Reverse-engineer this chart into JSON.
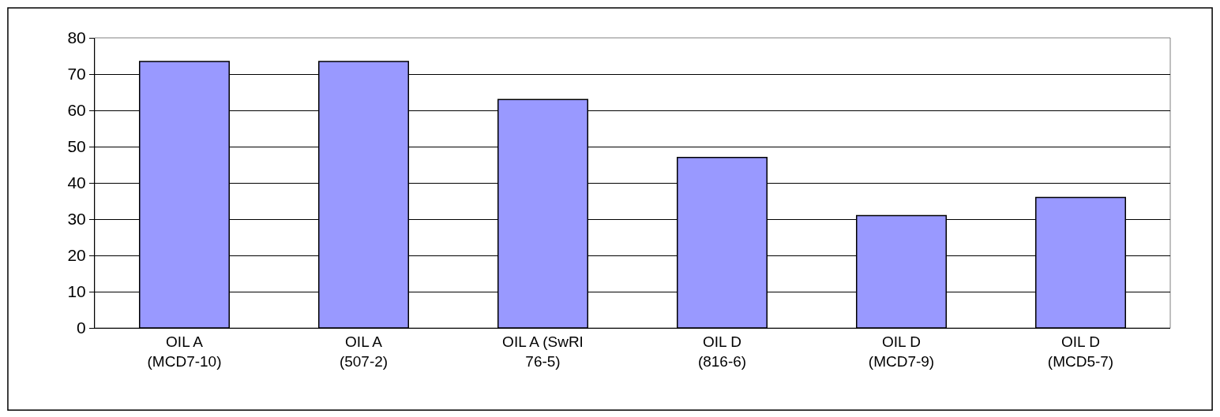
{
  "chart_data": {
    "type": "bar",
    "categories": [
      "OIL A (MCD7-10)",
      "OIL A (507-2)",
      "OIL A (SwRI 76-5)",
      "OIL D (816-6)",
      "OIL D (MCD7-9)",
      "OIL D (MCD5-7)"
    ],
    "values": [
      73.5,
      73.5,
      63,
      47,
      31,
      36
    ],
    "color": "#9999ff",
    "ylim": [
      0,
      80
    ],
    "yticks": [
      0,
      10,
      20,
      30,
      40,
      50,
      60,
      70,
      80
    ],
    "grid": "y"
  }
}
